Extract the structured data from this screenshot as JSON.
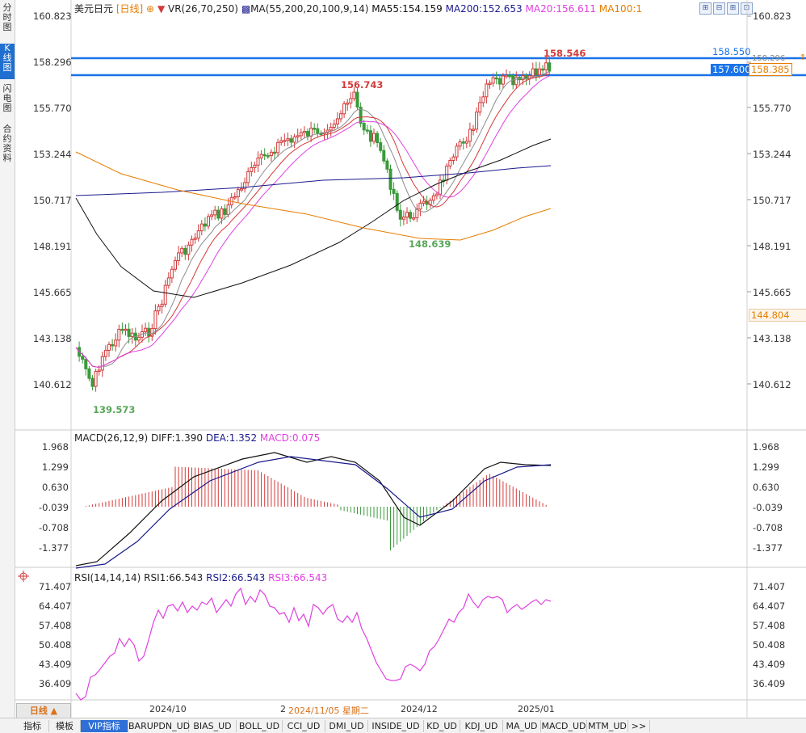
{
  "side_tabs": [
    "分时图",
    "K线图",
    "闪电图",
    "合约资料"
  ],
  "header": {
    "symbol": "美元日元",
    "period": "[日线]",
    "period_marker": "⊕",
    "vr": "VR(26,70,250)",
    "ma_params": "MA(55,200,20,100,9,14)",
    "ma55": "MA55:154.159",
    "ma200": "MA200:152.653",
    "ma20": "MA20:156.611",
    "ma100": "MA100:1"
  },
  "main_axis": [
    "160.823",
    "158.296",
    "155.770",
    "153.244",
    "150.717",
    "148.191",
    "145.665",
    "143.138",
    "140.612"
  ],
  "price_tags": {
    "top_line": "158.550",
    "bottom_line": "157.600",
    "current": "158.385",
    "ma100_value": "144.804",
    "axis_partial": "158.296"
  },
  "annotations": {
    "high": "158.546",
    "mid_high": "156.743",
    "mid_low": "148.639",
    "low": "139.573"
  },
  "macd": {
    "title": "MACD(26,12,9)",
    "diff": "DIFF:1.390",
    "dea": "DEA:1.352",
    "macd": "MACD:0.075",
    "axis": [
      "1.968",
      "1.299",
      "0.630",
      "-0.039",
      "-0.708",
      "-1.377"
    ]
  },
  "rsi": {
    "title": "RSI(14,14,14)",
    "rsi1": "RSI1:66.543",
    "rsi2": "RSI2:66.543",
    "rsi3": "RSI3:66.543",
    "axis": [
      "71.407",
      "64.407",
      "57.408",
      "50.408",
      "43.409",
      "36.409"
    ]
  },
  "x_axis": {
    "label1": "2024/10",
    "label2_prefix": "2",
    "label2": "2024/11/05 星期二",
    "label3": "2024/12",
    "label4": "2025/01"
  },
  "period_button": "日线 ▲",
  "bottom_tabs": [
    "指标",
    "模板",
    "VIP指标",
    "BARUPDN_UD",
    "BIAS_UD",
    "BOLL_UD",
    "CCI_UD",
    "DMI_UD",
    "INSIDE_UD",
    "KD_UD",
    "KDJ_UD",
    "MA_UD",
    "MACD_UD",
    "MTM_UD",
    ">>"
  ],
  "toolbar_icons": [
    "chart-grid-icon",
    "chart-grid-icon",
    "chart-grid-icon",
    "chart-grid-icon"
  ],
  "colors": {
    "up": "#d33a3a",
    "down": "#3a9a3a",
    "ma_gray": "#8c8c8c",
    "ma20": "#e040e0",
    "ma55": "#111111",
    "ma200": "#1a1a8c",
    "ma100": "#e67c00",
    "level": "#1a73e8",
    "annot_red": "#d33a3a",
    "annot_green": "#5aa55a"
  }
}
